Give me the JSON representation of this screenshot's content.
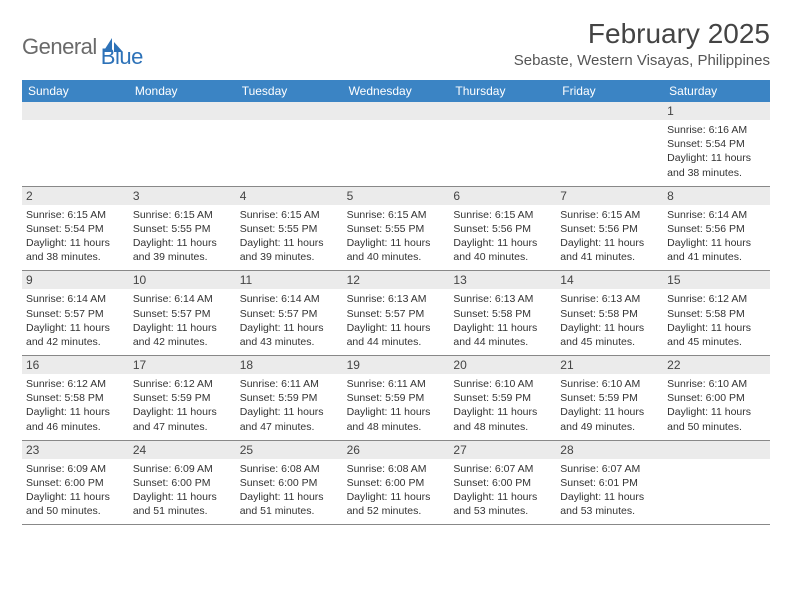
{
  "logo": {
    "general": "General",
    "blue": "Blue"
  },
  "title": "February 2025",
  "location": "Sebaste, Western Visayas, Philippines",
  "colors": {
    "header_bar": "#3b84c4",
    "daybar_bg": "#ebebeb",
    "logo_gray": "#6a6a6a",
    "logo_blue": "#2d72b8",
    "text": "#333333"
  },
  "weekdays": [
    "Sunday",
    "Monday",
    "Tuesday",
    "Wednesday",
    "Thursday",
    "Friday",
    "Saturday"
  ],
  "weeks": [
    [
      {
        "n": "",
        "sr": "",
        "ss": "",
        "dl": ""
      },
      {
        "n": "",
        "sr": "",
        "ss": "",
        "dl": ""
      },
      {
        "n": "",
        "sr": "",
        "ss": "",
        "dl": ""
      },
      {
        "n": "",
        "sr": "",
        "ss": "",
        "dl": ""
      },
      {
        "n": "",
        "sr": "",
        "ss": "",
        "dl": ""
      },
      {
        "n": "",
        "sr": "",
        "ss": "",
        "dl": ""
      },
      {
        "n": "1",
        "sr": "Sunrise: 6:16 AM",
        "ss": "Sunset: 5:54 PM",
        "dl": "Daylight: 11 hours and 38 minutes."
      }
    ],
    [
      {
        "n": "2",
        "sr": "Sunrise: 6:15 AM",
        "ss": "Sunset: 5:54 PM",
        "dl": "Daylight: 11 hours and 38 minutes."
      },
      {
        "n": "3",
        "sr": "Sunrise: 6:15 AM",
        "ss": "Sunset: 5:55 PM",
        "dl": "Daylight: 11 hours and 39 minutes."
      },
      {
        "n": "4",
        "sr": "Sunrise: 6:15 AM",
        "ss": "Sunset: 5:55 PM",
        "dl": "Daylight: 11 hours and 39 minutes."
      },
      {
        "n": "5",
        "sr": "Sunrise: 6:15 AM",
        "ss": "Sunset: 5:55 PM",
        "dl": "Daylight: 11 hours and 40 minutes."
      },
      {
        "n": "6",
        "sr": "Sunrise: 6:15 AM",
        "ss": "Sunset: 5:56 PM",
        "dl": "Daylight: 11 hours and 40 minutes."
      },
      {
        "n": "7",
        "sr": "Sunrise: 6:15 AM",
        "ss": "Sunset: 5:56 PM",
        "dl": "Daylight: 11 hours and 41 minutes."
      },
      {
        "n": "8",
        "sr": "Sunrise: 6:14 AM",
        "ss": "Sunset: 5:56 PM",
        "dl": "Daylight: 11 hours and 41 minutes."
      }
    ],
    [
      {
        "n": "9",
        "sr": "Sunrise: 6:14 AM",
        "ss": "Sunset: 5:57 PM",
        "dl": "Daylight: 11 hours and 42 minutes."
      },
      {
        "n": "10",
        "sr": "Sunrise: 6:14 AM",
        "ss": "Sunset: 5:57 PM",
        "dl": "Daylight: 11 hours and 42 minutes."
      },
      {
        "n": "11",
        "sr": "Sunrise: 6:14 AM",
        "ss": "Sunset: 5:57 PM",
        "dl": "Daylight: 11 hours and 43 minutes."
      },
      {
        "n": "12",
        "sr": "Sunrise: 6:13 AM",
        "ss": "Sunset: 5:57 PM",
        "dl": "Daylight: 11 hours and 44 minutes."
      },
      {
        "n": "13",
        "sr": "Sunrise: 6:13 AM",
        "ss": "Sunset: 5:58 PM",
        "dl": "Daylight: 11 hours and 44 minutes."
      },
      {
        "n": "14",
        "sr": "Sunrise: 6:13 AM",
        "ss": "Sunset: 5:58 PM",
        "dl": "Daylight: 11 hours and 45 minutes."
      },
      {
        "n": "15",
        "sr": "Sunrise: 6:12 AM",
        "ss": "Sunset: 5:58 PM",
        "dl": "Daylight: 11 hours and 45 minutes."
      }
    ],
    [
      {
        "n": "16",
        "sr": "Sunrise: 6:12 AM",
        "ss": "Sunset: 5:58 PM",
        "dl": "Daylight: 11 hours and 46 minutes."
      },
      {
        "n": "17",
        "sr": "Sunrise: 6:12 AM",
        "ss": "Sunset: 5:59 PM",
        "dl": "Daylight: 11 hours and 47 minutes."
      },
      {
        "n": "18",
        "sr": "Sunrise: 6:11 AM",
        "ss": "Sunset: 5:59 PM",
        "dl": "Daylight: 11 hours and 47 minutes."
      },
      {
        "n": "19",
        "sr": "Sunrise: 6:11 AM",
        "ss": "Sunset: 5:59 PM",
        "dl": "Daylight: 11 hours and 48 minutes."
      },
      {
        "n": "20",
        "sr": "Sunrise: 6:10 AM",
        "ss": "Sunset: 5:59 PM",
        "dl": "Daylight: 11 hours and 48 minutes."
      },
      {
        "n": "21",
        "sr": "Sunrise: 6:10 AM",
        "ss": "Sunset: 5:59 PM",
        "dl": "Daylight: 11 hours and 49 minutes."
      },
      {
        "n": "22",
        "sr": "Sunrise: 6:10 AM",
        "ss": "Sunset: 6:00 PM",
        "dl": "Daylight: 11 hours and 50 minutes."
      }
    ],
    [
      {
        "n": "23",
        "sr": "Sunrise: 6:09 AM",
        "ss": "Sunset: 6:00 PM",
        "dl": "Daylight: 11 hours and 50 minutes."
      },
      {
        "n": "24",
        "sr": "Sunrise: 6:09 AM",
        "ss": "Sunset: 6:00 PM",
        "dl": "Daylight: 11 hours and 51 minutes."
      },
      {
        "n": "25",
        "sr": "Sunrise: 6:08 AM",
        "ss": "Sunset: 6:00 PM",
        "dl": "Daylight: 11 hours and 51 minutes."
      },
      {
        "n": "26",
        "sr": "Sunrise: 6:08 AM",
        "ss": "Sunset: 6:00 PM",
        "dl": "Daylight: 11 hours and 52 minutes."
      },
      {
        "n": "27",
        "sr": "Sunrise: 6:07 AM",
        "ss": "Sunset: 6:00 PM",
        "dl": "Daylight: 11 hours and 53 minutes."
      },
      {
        "n": "28",
        "sr": "Sunrise: 6:07 AM",
        "ss": "Sunset: 6:01 PM",
        "dl": "Daylight: 11 hours and 53 minutes."
      },
      {
        "n": "",
        "sr": "",
        "ss": "",
        "dl": ""
      }
    ]
  ]
}
